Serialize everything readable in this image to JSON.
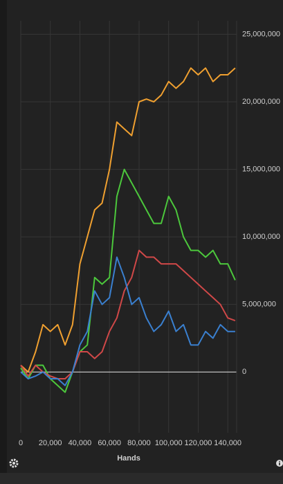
{
  "chart_data": {
    "type": "line",
    "xlabel": "Hands",
    "x": [
      0,
      5000,
      10000,
      15000,
      20000,
      25000,
      30000,
      35000,
      40000,
      45000,
      50000,
      55000,
      60000,
      65000,
      70000,
      75000,
      80000,
      85000,
      90000,
      95000,
      100000,
      105000,
      110000,
      115000,
      120000,
      125000,
      130000,
      135000,
      140000,
      145000
    ],
    "series": [
      {
        "color": "#f0a030",
        "values": [
          500000,
          0,
          1500000,
          3500000,
          3000000,
          3500000,
          2000000,
          3500000,
          8000000,
          10000000,
          12000000,
          12500000,
          15000000,
          18500000,
          18000000,
          17500000,
          20000000,
          20200000,
          20000000,
          20500000,
          21500000,
          21000000,
          21500000,
          22500000,
          22000000,
          22500000,
          21500000,
          22000000,
          22000000,
          22500000
        ]
      },
      {
        "color": "#4cc83c",
        "values": [
          300000,
          -500000,
          500000,
          500000,
          -500000,
          -1000000,
          -1500000,
          0,
          1500000,
          2000000,
          7000000,
          6500000,
          7000000,
          13000000,
          15000000,
          14000000,
          13000000,
          12000000,
          11000000,
          11000000,
          13000000,
          12000000,
          10000000,
          9000000,
          9000000,
          8500000,
          9000000,
          8000000,
          8000000,
          6800000
        ]
      },
      {
        "color": "#d04848",
        "values": [
          500000,
          -300000,
          500000,
          0,
          -300000,
          -500000,
          -500000,
          0,
          1500000,
          1500000,
          1000000,
          1500000,
          3000000,
          4000000,
          6000000,
          7000000,
          9000000,
          8500000,
          8500000,
          8000000,
          8000000,
          8000000,
          7500000,
          7000000,
          6500000,
          6000000,
          5500000,
          5000000,
          4000000,
          3800000
        ]
      },
      {
        "color": "#3a80d0",
        "values": [
          0,
          -500000,
          -300000,
          0,
          -500000,
          -500000,
          -1000000,
          0,
          2000000,
          3000000,
          6000000,
          5000000,
          5500000,
          8500000,
          7000000,
          5000000,
          5500000,
          4000000,
          3000000,
          3500000,
          4500000,
          3000000,
          3500000,
          2000000,
          2000000,
          3000000,
          2500000,
          3500000,
          3000000,
          3000000
        ]
      }
    ],
    "xlim": [
      0,
      146000
    ],
    "ylim": [
      -4500000,
      26000000
    ],
    "xticks": [
      0,
      {
        "value": 20000,
        "label": "20,000"
      },
      {
        "value": 40000,
        "label": "40,000"
      },
      {
        "value": 60000,
        "label": "60,000"
      },
      {
        "value": 80000,
        "label": "80,000"
      },
      {
        "value": 100000,
        "label": "100,000"
      },
      {
        "value": 120000,
        "label": "120,000"
      },
      {
        "value": 140000,
        "label": "140,000"
      }
    ],
    "yticks": [
      0,
      {
        "value": 5000000,
        "label": "5,000,000"
      },
      {
        "value": 10000000,
        "label": "10,000,000"
      },
      {
        "value": 15000000,
        "label": "15,000,000"
      },
      {
        "value": 20000000,
        "label": "20,000,000"
      },
      {
        "value": 25000000,
        "label": "25,000,000"
      }
    ],
    "grid": true
  }
}
